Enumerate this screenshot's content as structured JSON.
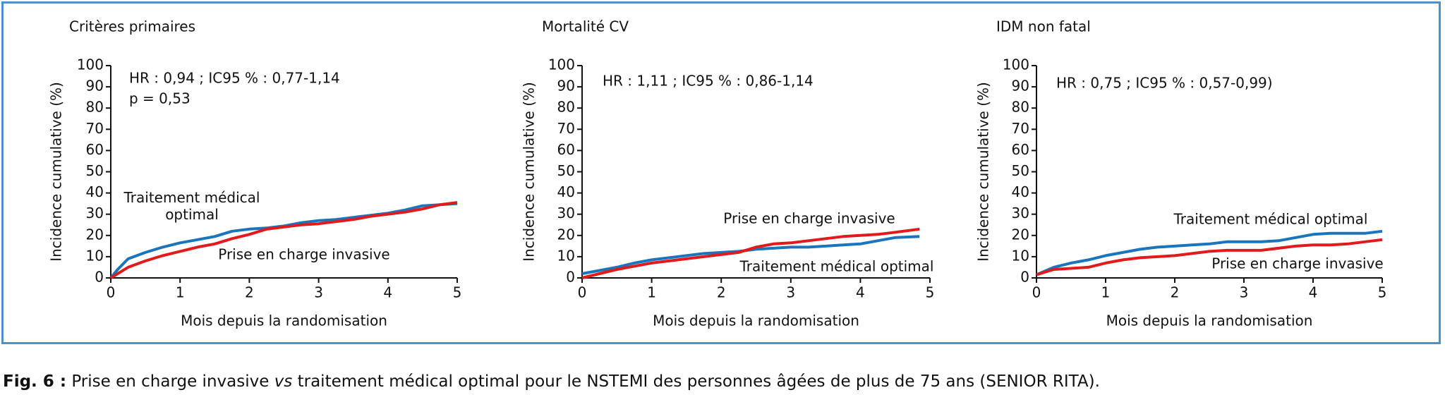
{
  "chart_data": [
    {
      "type": "line",
      "title": "Critères primaires",
      "xlabel": "Mois depuis la randomisation",
      "ylabel": "Incidence cumulative (%)",
      "annotations": [
        "HR : 0,94 ; IC95 % : 0,77-1,14",
        "p = 0,53"
      ],
      "x": [
        0,
        0.1,
        0.25,
        0.5,
        0.75,
        1,
        1.25,
        1.5,
        1.75,
        2,
        2.25,
        2.5,
        2.75,
        3,
        3.25,
        3.5,
        3.75,
        4,
        4.25,
        4.5,
        4.75,
        5
      ],
      "series": [
        {
          "name": "Traitement médical optimal",
          "color": "#1b75bc",
          "values": [
            0,
            4,
            9,
            12,
            14.5,
            16.5,
            18,
            19.5,
            22,
            23,
            23.5,
            24.5,
            26,
            27,
            27.5,
            28.5,
            29.5,
            30.5,
            32,
            34,
            34.5,
            35
          ]
        },
        {
          "name": "Prise en charge invasive",
          "color": "#e31a1c",
          "values": [
            0,
            2,
            5,
            8,
            10.5,
            12.5,
            14.5,
            16,
            18.5,
            20.5,
            23,
            24,
            25,
            25.5,
            26.5,
            27.5,
            29,
            30,
            31,
            32.5,
            34.5,
            35.5
          ]
        }
      ],
      "xlim": [
        0,
        5
      ],
      "xticks": [
        0,
        1,
        2,
        3,
        4,
        5
      ],
      "ylim": [
        0,
        100
      ],
      "yticks": [
        0,
        10,
        20,
        30,
        40,
        50,
        60,
        70,
        80,
        90,
        100
      ]
    },
    {
      "type": "line",
      "title": "Mortalité CV",
      "xlabel": "Mois depuis la randomisation",
      "ylabel": "Incidence cumulative (%)",
      "annotations": [
        "HR : 1,11 ; IC95 % : 0,86-1,14"
      ],
      "x": [
        0,
        0.25,
        0.5,
        0.75,
        1,
        1.25,
        1.5,
        1.75,
        2,
        2.25,
        2.5,
        2.75,
        3,
        3.25,
        3.5,
        3.75,
        4,
        4.25,
        4.5,
        4.85
      ],
      "series": [
        {
          "name": "Traitement médical optimal",
          "color": "#1b75bc",
          "values": [
            2,
            3.5,
            5,
            7,
            8.5,
            9.5,
            10.5,
            11.5,
            12,
            12.5,
            13.5,
            14,
            14.5,
            14.5,
            15,
            15.5,
            16,
            17.5,
            19,
            19.5
          ]
        },
        {
          "name": "Prise en charge invasive",
          "color": "#e31a1c",
          "values": [
            0,
            2,
            4,
            5.5,
            7,
            8,
            9,
            10,
            11,
            12,
            14.5,
            16,
            16.5,
            17.5,
            18.5,
            19.5,
            20,
            20.5,
            21.5,
            23
          ]
        }
      ],
      "xlim": [
        0,
        5
      ],
      "xticks": [
        0,
        1,
        2,
        3,
        4,
        5
      ],
      "ylim": [
        0,
        100
      ],
      "yticks": [
        0,
        10,
        20,
        30,
        40,
        50,
        60,
        70,
        80,
        90,
        100
      ]
    },
    {
      "type": "line",
      "title": "IDM non fatal",
      "xlabel": "Mois depuis la randomisation",
      "ylabel": "Incidence cumulative (%)",
      "annotations": [
        "HR : 0,75 ; IC95 % : 0,57-0,99)"
      ],
      "x": [
        0,
        0.25,
        0.5,
        0.75,
        1,
        1.25,
        1.5,
        1.75,
        2,
        2.25,
        2.5,
        2.75,
        3,
        3.25,
        3.5,
        3.75,
        4,
        4.25,
        4.5,
        4.75,
        5
      ],
      "series": [
        {
          "name": "Traitement médical optimal",
          "color": "#1b75bc",
          "values": [
            1.5,
            5,
            7,
            8.5,
            10.5,
            12,
            13.5,
            14.5,
            15,
            15.5,
            16,
            17,
            17,
            17,
            17.5,
            19,
            20.5,
            21,
            21,
            21,
            22
          ]
        },
        {
          "name": "Prise en charge invasive",
          "color": "#e31a1c",
          "values": [
            1.5,
            4,
            4.5,
            5,
            7,
            8.5,
            9.5,
            10,
            10.5,
            11.5,
            12.5,
            13,
            13,
            13,
            14,
            15,
            15.5,
            15.5,
            16,
            17,
            18
          ]
        }
      ],
      "xlim": [
        0,
        5
      ],
      "xticks": [
        0,
        1,
        2,
        3,
        4,
        5
      ],
      "ylim": [
        0,
        100
      ],
      "yticks": [
        0,
        10,
        20,
        30,
        40,
        50,
        60,
        70,
        80,
        90,
        100
      ]
    }
  ],
  "caption": {
    "label": "Fig. 6 :",
    "text_before": "Prise en charge invasive",
    "italic": "vs",
    "text_after": "traitement médical optimal pour le NSTEMI des personnes âgées de plus de 75 ans (SENIOR RITA)."
  }
}
